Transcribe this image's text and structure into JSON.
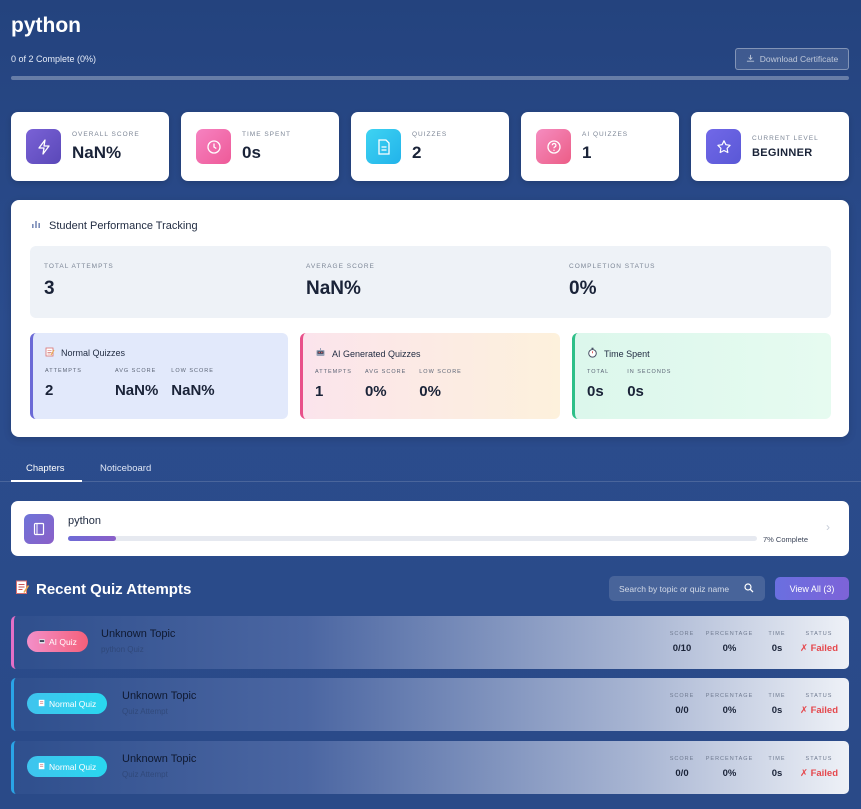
{
  "header": {
    "title": "python",
    "progress_text": "0 of 2 Complete (0%)",
    "download_label": "Download Certificate",
    "progress_fraction": 0
  },
  "stats": [
    {
      "label": "OVERALL SCORE",
      "value": "NaN%",
      "icon": "lightning-icon",
      "color": "#6a55c8"
    },
    {
      "label": "TIME SPENT",
      "value": "0s",
      "icon": "clock-icon",
      "color": "#f265a8"
    },
    {
      "label": "QUIZZES",
      "value": "2",
      "icon": "document-icon",
      "color": "#2ec3ee"
    },
    {
      "label": "AI QUIZZES",
      "value": "1",
      "icon": "question-icon",
      "color": "#f06492"
    },
    {
      "label": "CURRENT LEVEL",
      "value": "BEGINNER",
      "icon": "star-icon",
      "color": "#6a5fe0"
    }
  ],
  "performance": {
    "title": "Student Performance Tracking",
    "summary": [
      {
        "label": "TOTAL ATTEMPTS",
        "value": "3"
      },
      {
        "label": "AVERAGE SCORE",
        "value": "NaN%"
      },
      {
        "label": "COMPLETION STATUS",
        "value": "0%"
      }
    ],
    "cards": [
      {
        "title": "Normal Quizzes",
        "icon": "memo-icon",
        "columns": [
          {
            "label": "ATTEMPTS",
            "value": "2"
          },
          {
            "label": "AVG SCORE",
            "value": "NaN%"
          },
          {
            "label": "LOW SCORE",
            "value": "NaN%"
          }
        ]
      },
      {
        "title": "AI Generated Quizzes",
        "icon": "robot-icon",
        "columns": [
          {
            "label": "ATTEMPTS",
            "value": "1"
          },
          {
            "label": "AVG SCORE",
            "value": "0%"
          },
          {
            "label": "LOW SCORE",
            "value": "0%"
          }
        ]
      },
      {
        "title": "Time Spent",
        "icon": "stopwatch-icon",
        "columns": [
          {
            "label": "TOTAL",
            "value": "0s"
          },
          {
            "label": "IN SECONDS",
            "value": "0s"
          }
        ]
      }
    ]
  },
  "tabs": [
    {
      "label": "Chapters",
      "active": true
    },
    {
      "label": "Noticeboard",
      "active": false
    }
  ],
  "chapter": {
    "name": "python",
    "progress_label": "7% Complete",
    "progress_fraction": 0.07
  },
  "recent": {
    "title": "Recent Quiz Attempts",
    "search_placeholder": "Search by topic or quiz name",
    "view_all_label": "View All (3)",
    "column_labels": [
      "SCORE",
      "PERCENTAGE",
      "TIME",
      "STATUS"
    ],
    "attempts": [
      {
        "badge": "AI Quiz",
        "type": "ai",
        "topic": "Unknown Topic",
        "subtitle": "python Quiz",
        "score": "0/10",
        "percentage": "0%",
        "time": "0s",
        "status": "✗ Failed"
      },
      {
        "badge": "Normal Quiz",
        "type": "normal",
        "topic": "Unknown Topic",
        "subtitle": "Quiz Attempt",
        "score": "0/0",
        "percentage": "0%",
        "time": "0s",
        "status": "✗ Failed"
      },
      {
        "badge": "Normal Quiz",
        "type": "normal",
        "topic": "Unknown Topic",
        "subtitle": "Quiz Attempt",
        "score": "0/0",
        "percentage": "0%",
        "time": "0s",
        "status": "✗ Failed"
      }
    ]
  }
}
